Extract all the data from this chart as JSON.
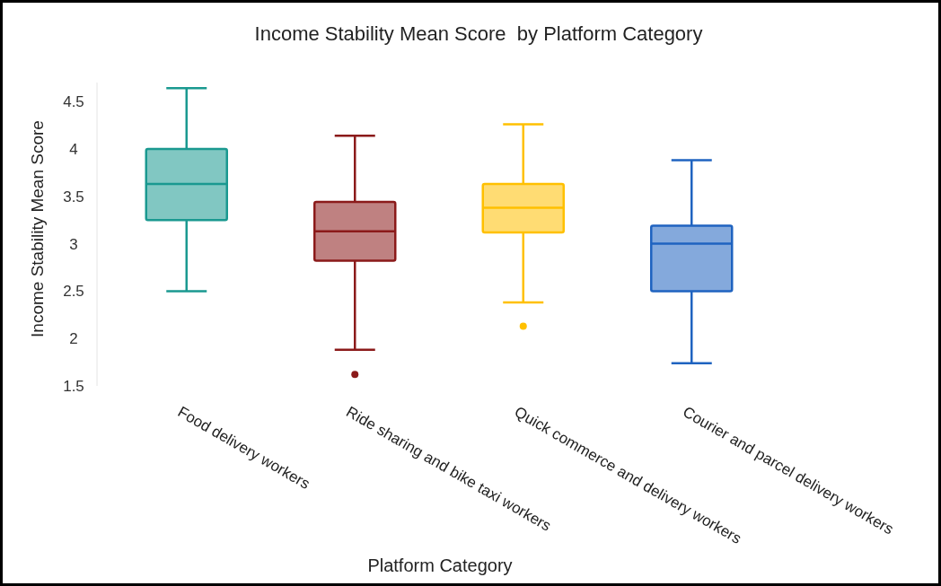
{
  "chart_data": {
    "type": "box",
    "title": "Income Stability Mean Score  by Platform Category",
    "xlabel": "Platform Category",
    "ylabel": "Income Stability Mean Score",
    "categories": [
      "Food delivery workers",
      "Ride sharing and bike taxi workers",
      "Quick commerce and delivery workers",
      "Courier and parcel delivery workers"
    ],
    "colors": [
      "#1a9990",
      "#8b1a1a",
      "#ffc000",
      "#1f63c0"
    ],
    "boxes": [
      {
        "low": 2.5,
        "q1": 3.25,
        "median": 3.63,
        "q3": 4.0,
        "high": 4.64
      },
      {
        "low": 1.88,
        "q1": 2.82,
        "median": 3.13,
        "q3": 3.44,
        "high": 4.14,
        "outliers": [
          1.62
        ]
      },
      {
        "low": 2.38,
        "q1": 3.12,
        "median": 3.38,
        "q3": 3.63,
        "high": 4.26,
        "outliers": [
          2.13
        ]
      },
      {
        "low": 1.74,
        "q1": 2.5,
        "median": 3.0,
        "q3": 3.19,
        "high": 3.88
      }
    ],
    "ylim": [
      1.5,
      4.7
    ],
    "yticks": [
      1.5,
      2,
      2.5,
      3,
      3.5,
      4,
      4.5
    ],
    "grid": false
  }
}
